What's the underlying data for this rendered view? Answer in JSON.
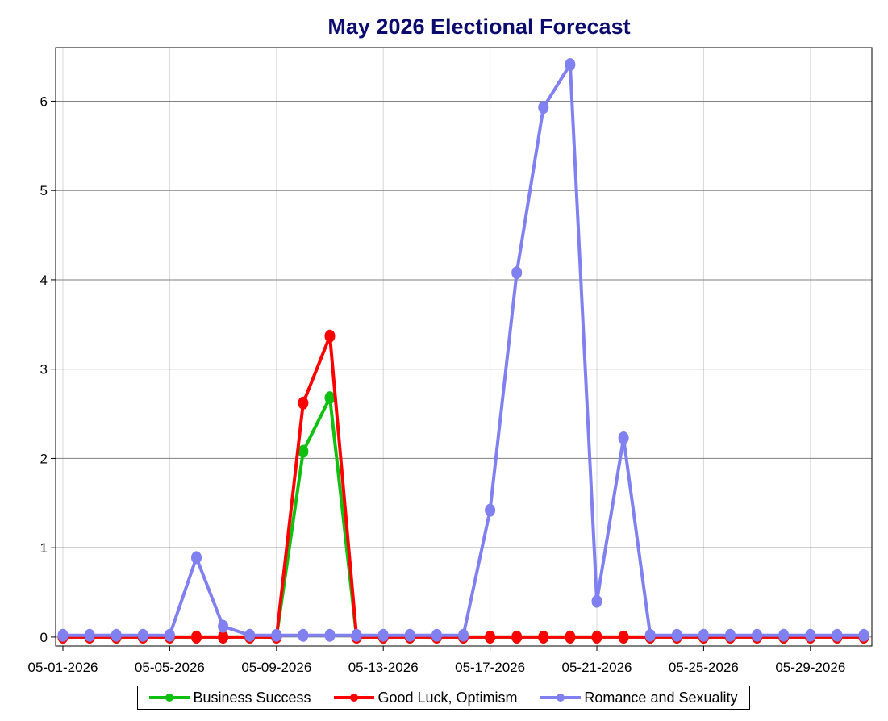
{
  "chart_data": {
    "type": "line",
    "title": "May 2026 Electional Forecast",
    "xlabel": "",
    "ylabel": "",
    "ylim": [
      -0.1,
      6.6
    ],
    "yticks": [
      0,
      1,
      2,
      3,
      4,
      5,
      6
    ],
    "x": [
      "05-01-2026",
      "05-02-2026",
      "05-03-2026",
      "05-04-2026",
      "05-05-2026",
      "05-06-2026",
      "05-07-2026",
      "05-08-2026",
      "05-09-2026",
      "05-10-2026",
      "05-11-2026",
      "05-12-2026",
      "05-13-2026",
      "05-14-2026",
      "05-15-2026",
      "05-16-2026",
      "05-17-2026",
      "05-18-2026",
      "05-19-2026",
      "05-20-2026",
      "05-21-2026",
      "05-22-2026",
      "05-23-2026",
      "05-24-2026",
      "05-25-2026",
      "05-26-2026",
      "05-27-2026",
      "05-28-2026",
      "05-29-2026",
      "05-30-2026",
      "05-31-2026"
    ],
    "xticks": [
      "05-01-2026",
      "05-05-2026",
      "05-09-2026",
      "05-13-2026",
      "05-17-2026",
      "05-21-2026",
      "05-25-2026",
      "05-29-2026"
    ],
    "grid": true,
    "legend_position": "bottom",
    "series": [
      {
        "name": "Business Success",
        "color": "#10c010",
        "values": [
          0,
          0,
          0,
          0,
          0,
          0,
          0,
          0,
          0,
          2.08,
          2.68,
          0,
          0,
          0,
          0,
          0,
          0,
          0,
          0,
          0,
          0,
          0,
          0,
          0,
          0,
          0,
          0,
          0,
          0,
          0,
          0
        ]
      },
      {
        "name": "Good Luck, Optimism",
        "color": "#ff0000",
        "values": [
          0,
          0,
          0,
          0,
          0,
          0,
          0,
          0,
          0,
          2.62,
          3.37,
          0,
          0,
          0,
          0,
          0,
          0,
          0,
          0,
          0,
          0,
          0,
          0,
          0,
          0,
          0,
          0,
          0,
          0,
          0,
          0
        ]
      },
      {
        "name": "Romance and Sexuality",
        "color": "#8080f0",
        "values": [
          0.02,
          0.02,
          0.02,
          0.02,
          0.02,
          0.89,
          0.12,
          0.02,
          0.02,
          0.02,
          0.02,
          0.02,
          0.02,
          0.02,
          0.02,
          0.02,
          1.42,
          4.08,
          5.93,
          6.41,
          0.4,
          2.23,
          0.02,
          0.02,
          0.02,
          0.02,
          0.02,
          0.02,
          0.02,
          0.02,
          0.02
        ]
      }
    ]
  }
}
